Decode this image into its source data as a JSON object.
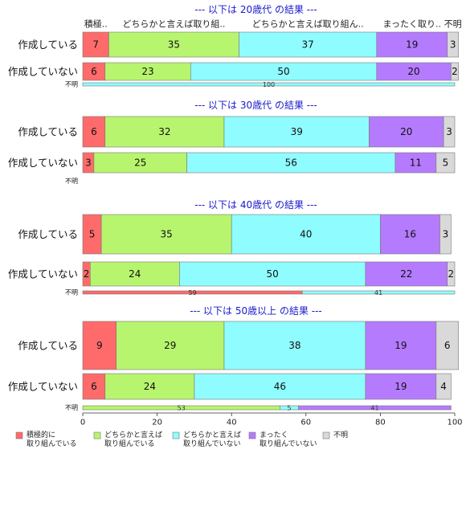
{
  "chart_data": {
    "type": "bar",
    "orientation": "horizontal-stacked-percent",
    "xlim": [
      0,
      100
    ],
    "xticks": [
      0,
      20,
      40,
      60,
      80,
      100
    ],
    "categories": [
      "積極的に\n取り組んでいる",
      "どちらかと言えば\n取り組んでいる",
      "どちらかと言えば\n取り組んでいない",
      "まったく\n取り組んでいない",
      "不明"
    ],
    "colors": [
      "#ff6b6b",
      "#b8f56e",
      "#8ffcff",
      "#b57bff",
      "#d9d9d9"
    ],
    "groups": [
      {
        "title": "--- 以下は 20歳代 の結果 ---",
        "headers": [
          "積極..",
          "どちらかと言えば取り組..",
          "どちらかと言えば取り組ん..",
          "まったく取り..",
          "不明"
        ],
        "rows": [
          {
            "label": "作成している",
            "values": [
              7,
              35,
              37,
              19,
              3
            ]
          },
          {
            "label": "作成していない",
            "values": [
              6,
              23,
              50,
              20,
              2
            ]
          },
          {
            "label": "不明",
            "values": [
              0,
              0,
              100,
              0,
              0
            ]
          }
        ]
      },
      {
        "title": "--- 以下は 30歳代 の結果 ---",
        "headers": [],
        "rows": [
          {
            "label": "作成している",
            "values": [
              6,
              32,
              39,
              20,
              3
            ]
          },
          {
            "label": "作成していない",
            "values": [
              3,
              25,
              56,
              11,
              5
            ]
          },
          {
            "label": "不明",
            "values": [
              0,
              0,
              0,
              0,
              0
            ]
          }
        ]
      },
      {
        "title": "--- 以下は 40歳代 の結果 ---",
        "headers": [],
        "rows": [
          {
            "label": "作成している",
            "values": [
              5,
              35,
              40,
              16,
              3
            ]
          },
          {
            "label": "作成していない",
            "values": [
              2,
              24,
              50,
              22,
              2
            ]
          },
          {
            "label": "不明",
            "values": [
              59,
              0,
              41,
              0,
              0
            ]
          }
        ]
      },
      {
        "title": "--- 以下は 50歳以上 の結果 ---",
        "headers": [],
        "rows": [
          {
            "label": "作成している",
            "values": [
              9,
              29,
              38,
              19,
              6
            ]
          },
          {
            "label": "作成していない",
            "values": [
              6,
              24,
              46,
              19,
              4
            ]
          },
          {
            "label": "不明",
            "values": [
              0,
              53,
              5,
              41,
              0
            ]
          }
        ]
      }
    ]
  }
}
